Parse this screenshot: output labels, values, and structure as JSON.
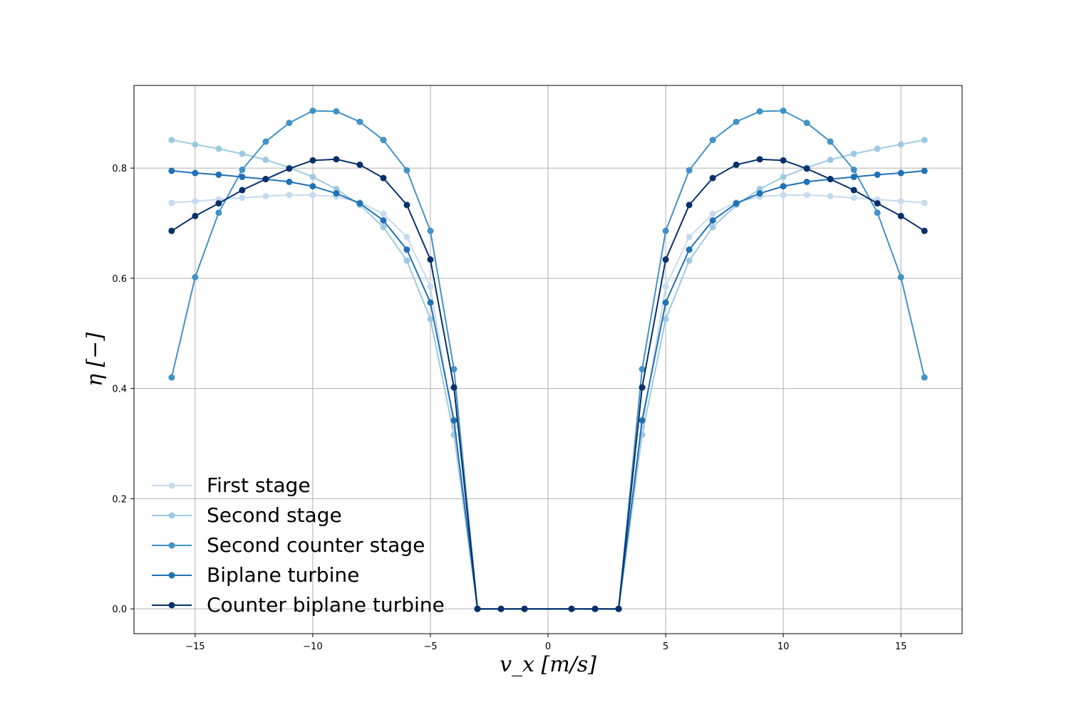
{
  "chart_data": {
    "type": "line",
    "xlabel": "v_x [m/s]",
    "ylabel": "η [−]",
    "xlim": [
      -17.6,
      17.6
    ],
    "ylim": [
      -0.045,
      0.95
    ],
    "grid": true,
    "legend_position": "lower-left",
    "x_ticks": [
      -15,
      -10,
      -5,
      0,
      5,
      10,
      15
    ],
    "x_tick_labels": [
      "−15",
      "−10",
      "−5",
      "0",
      "5",
      "10",
      "15"
    ],
    "y_ticks": [
      0.0,
      0.2,
      0.4,
      0.6,
      0.8
    ],
    "y_tick_labels": [
      "0.0",
      "0.2",
      "0.4",
      "0.6",
      "0.8"
    ],
    "x": [
      -16,
      -15,
      -14,
      -13,
      -12,
      -11,
      -10,
      -9,
      -8,
      -7,
      -6,
      -5,
      -4,
      -3,
      -2,
      -1,
      1,
      2,
      3,
      4,
      5,
      6,
      7,
      8,
      9,
      10,
      11,
      12,
      13,
      14,
      15,
      16
    ],
    "series": [
      {
        "name": "First stage",
        "color": "#c6dbef",
        "values": [
          0.737,
          0.74,
          0.743,
          0.746,
          0.749,
          0.751,
          0.751,
          0.748,
          0.738,
          0.717,
          0.675,
          0.585,
          0.33,
          0,
          0,
          0,
          0,
          0,
          0,
          0.33,
          0.585,
          0.675,
          0.717,
          0.738,
          0.748,
          0.751,
          0.751,
          0.749,
          0.746,
          0.743,
          0.74,
          0.737
        ]
      },
      {
        "name": "Second stage",
        "color": "#9ecae1",
        "values": [
          0.851,
          0.843,
          0.835,
          0.826,
          0.815,
          0.801,
          0.784,
          0.762,
          0.733,
          0.693,
          0.632,
          0.526,
          0.316,
          0,
          0,
          0,
          0,
          0,
          0,
          0.316,
          0.526,
          0.632,
          0.693,
          0.733,
          0.762,
          0.784,
          0.801,
          0.815,
          0.826,
          0.835,
          0.843,
          0.851
        ]
      },
      {
        "name": "Second counter stage",
        "color": "#4292c6",
        "values": [
          0.42,
          0.602,
          0.719,
          0.797,
          0.848,
          0.882,
          0.904,
          0.903,
          0.884,
          0.851,
          0.796,
          0.686,
          0.435,
          0,
          0,
          0,
          0,
          0,
          0,
          0.435,
          0.686,
          0.796,
          0.851,
          0.884,
          0.903,
          0.904,
          0.882,
          0.848,
          0.797,
          0.719,
          0.602,
          0.42
        ]
      },
      {
        "name": "Biplane turbine",
        "color": "#2171b5",
        "values": [
          0.795,
          0.791,
          0.788,
          0.784,
          0.78,
          0.775,
          0.767,
          0.754,
          0.736,
          0.705,
          0.652,
          0.556,
          0.342,
          0,
          0,
          0,
          0,
          0,
          0,
          0.342,
          0.556,
          0.652,
          0.705,
          0.736,
          0.754,
          0.767,
          0.775,
          0.78,
          0.784,
          0.788,
          0.791,
          0.795
        ]
      },
      {
        "name": "Counter biplane turbine",
        "color": "#08306b",
        "values": [
          0.686,
          0.713,
          0.736,
          0.76,
          0.78,
          0.799,
          0.814,
          0.816,
          0.806,
          0.782,
          0.733,
          0.634,
          0.402,
          0,
          0,
          0,
          0,
          0,
          0,
          0.402,
          0.634,
          0.733,
          0.782,
          0.806,
          0.816,
          0.814,
          0.799,
          0.78,
          0.76,
          0.736,
          0.713,
          0.686
        ]
      }
    ]
  }
}
